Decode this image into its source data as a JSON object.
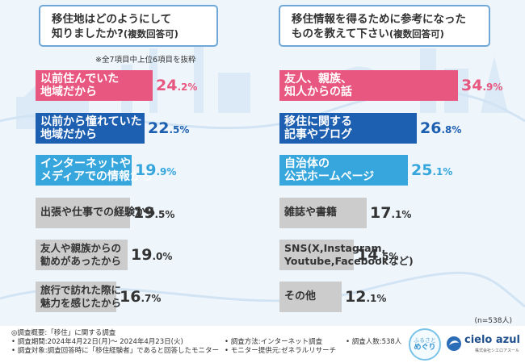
{
  "left_panel": {
    "title_line1": "移住地はどのようにして",
    "title_line2": "知りましたか?",
    "title_suffix": "(複数回答可)",
    "note": "※全7項目中上位6項目を抜粋"
  },
  "right_panel": {
    "title_line1": "移住情報を得るために参考になった",
    "title_line2": "ものを教えて下さい",
    "title_suffix": "(複数回答可)"
  },
  "chart_data": [
    {
      "type": "bar",
      "orientation": "horizontal",
      "title": "移住地はどのようにして知りましたか?(複数回答可)",
      "unit": "%",
      "categories": [
        "以前住んでいた地域だから",
        "以前から憧れていた地域だから",
        "インターネットやメディアでの情報から",
        "出張や仕事での経験から",
        "友人や親族からの勧めがあったから",
        "旅行で訪れた際に魅力を感じたから"
      ],
      "labels": [
        [
          "以前住んでいた",
          "地域だから"
        ],
        [
          "以前から憧れていた",
          "地域だから"
        ],
        [
          "インターネットや",
          "メディアでの情報から"
        ],
        [
          "出張や仕事での経験から"
        ],
        [
          "友人や親族からの",
          "勧めがあったから"
        ],
        [
          "旅行で訪れた際に",
          "魅力を感じたから"
        ]
      ],
      "values": [
        24.2,
        22.5,
        19.9,
        19.5,
        19.0,
        16.7
      ],
      "pct_int": [
        "24",
        "22",
        "19",
        "19",
        "19",
        "16"
      ],
      "pct_dec": [
        ".2%",
        ".5%",
        ".9%",
        ".5%",
        ".0%",
        ".7%"
      ],
      "colors": [
        "#e8577f",
        "#1d5fb0",
        "#36a6dd",
        "#cccccc",
        "#cccccc",
        "#cccccc"
      ]
    },
    {
      "type": "bar",
      "orientation": "horizontal",
      "title": "移住情報を得るために参考になったものを教えて下さい(複数回答可)",
      "unit": "%",
      "categories": [
        "友人、親族、知人からの話",
        "移住に関する記事やブログ",
        "自治体の公式ホームページ",
        "雑誌や書籍",
        "SNS(X,Instagram,Youtube,Facebookなど)",
        "その他"
      ],
      "labels": [
        [
          "友人、親族、",
          "知人からの話"
        ],
        [
          "移住に関する",
          "記事やブログ"
        ],
        [
          "自治体の",
          "公式ホームページ"
        ],
        [
          "雑誌や書籍"
        ],
        [
          "SNS(X,Instagram,",
          "Youtube,Facebookなど)"
        ],
        [
          "その他"
        ]
      ],
      "values": [
        34.9,
        26.8,
        25.1,
        17.1,
        14.5,
        12.1
      ],
      "pct_int": [
        "34",
        "26",
        "25",
        "17",
        "14",
        "12"
      ],
      "pct_dec": [
        ".9%",
        ".8%",
        ".1%",
        ".1%",
        ".5%",
        ".1%"
      ],
      "colors": [
        "#e8577f",
        "#1d5fb0",
        "#36a6dd",
        "#cccccc",
        "#cccccc",
        "#cccccc"
      ]
    }
  ],
  "sample_size": "(n=538人)",
  "footer": {
    "overview": "◎調査概要:「移住」に関する調査",
    "period": "• 調査期間:2024年4月22日(月)〜 2024年4月23日(火)",
    "target": "• 調査対象:調査回答時に「移住経験者」であると回答したモニター",
    "method": "• 調査方法:インターネット調査",
    "provider": "• モニター提供元:ゼネラルリサーチ",
    "respondents": "• 調査人数:538人",
    "logo1_line1": "ふるさと",
    "logo1_line2": "めぐり",
    "logo2_name": "cielo azul",
    "logo2_sub": "株式会社シエロアスール"
  }
}
